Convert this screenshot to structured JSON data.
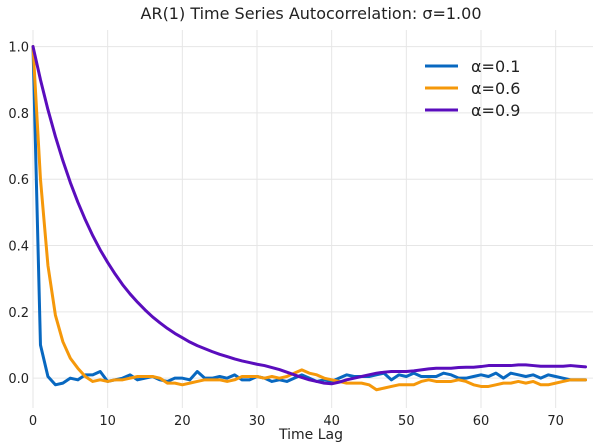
{
  "chart_data": {
    "type": "line",
    "title": "AR(1) Time Series Autocorrelation: σ=1.00",
    "xlabel": "Time Lag",
    "ylabel": "",
    "xlim": [
      0,
      75
    ],
    "ylim": [
      -0.09,
      1.05
    ],
    "xticks": [
      0,
      10,
      20,
      30,
      40,
      50,
      60,
      70
    ],
    "yticks": [
      0.0,
      0.2,
      0.4,
      0.6,
      0.8,
      1.0
    ],
    "xtick_labels": [
      "0",
      "10",
      "20",
      "30",
      "40",
      "50",
      "60",
      "70"
    ],
    "ytick_labels": [
      "0.0",
      "0.2",
      "0.4",
      "0.6",
      "0.8",
      "1.0"
    ],
    "grid": true,
    "legend_position": "top-right",
    "x": [
      0,
      1,
      2,
      3,
      4,
      5,
      6,
      7,
      8,
      9,
      10,
      11,
      12,
      13,
      14,
      15,
      16,
      17,
      18,
      19,
      20,
      21,
      22,
      23,
      24,
      25,
      26,
      27,
      28,
      29,
      30,
      31,
      32,
      33,
      34,
      35,
      36,
      37,
      38,
      39,
      40,
      41,
      42,
      43,
      44,
      45,
      46,
      47,
      48,
      49,
      50,
      51,
      52,
      53,
      54,
      55,
      56,
      57,
      58,
      59,
      60,
      61,
      62,
      63,
      64,
      65,
      66,
      67,
      68,
      69,
      70,
      71,
      72,
      73,
      74
    ],
    "series": [
      {
        "name": "α=0.1",
        "color": "#0868c0",
        "values": [
          1.0,
          0.1,
          0.005,
          -0.02,
          -0.015,
          0.0,
          -0.005,
          0.01,
          0.01,
          0.02,
          -0.01,
          -0.005,
          0.0,
          0.01,
          -0.005,
          0.0,
          0.005,
          -0.005,
          -0.01,
          0.0,
          0.0,
          -0.005,
          0.02,
          0.0,
          0.0,
          0.005,
          0.0,
          0.01,
          -0.005,
          -0.005,
          0.005,
          0.0,
          -0.01,
          -0.005,
          -0.01,
          0.0,
          0.01,
          0.0,
          -0.01,
          -0.005,
          -0.01,
          0.0,
          0.01,
          0.005,
          0.005,
          0.005,
          0.01,
          0.015,
          -0.005,
          0.01,
          0.005,
          0.015,
          0.005,
          0.005,
          0.005,
          0.015,
          0.01,
          0.0,
          0.0,
          0.005,
          0.01,
          0.005,
          0.015,
          0.0,
          0.015,
          0.01,
          0.005,
          0.01,
          0.0,
          0.01,
          0.005,
          0.0,
          -0.005,
          -0.005,
          -0.005
        ]
      },
      {
        "name": "α=0.6",
        "color": "#f5980a",
        "values": [
          1.0,
          0.6,
          0.34,
          0.19,
          0.11,
          0.06,
          0.03,
          0.005,
          -0.01,
          -0.005,
          -0.01,
          -0.005,
          -0.005,
          0.0,
          0.005,
          0.005,
          0.005,
          0.0,
          -0.015,
          -0.015,
          -0.02,
          -0.015,
          -0.01,
          -0.005,
          -0.005,
          -0.005,
          -0.01,
          -0.005,
          0.005,
          0.005,
          0.005,
          0.0,
          0.005,
          0.0,
          0.005,
          0.015,
          0.025,
          0.015,
          0.01,
          0.0,
          -0.005,
          -0.01,
          -0.015,
          -0.015,
          -0.015,
          -0.02,
          -0.035,
          -0.03,
          -0.025,
          -0.02,
          -0.02,
          -0.02,
          -0.01,
          -0.005,
          -0.01,
          -0.01,
          -0.01,
          -0.005,
          -0.01,
          -0.02,
          -0.025,
          -0.025,
          -0.02,
          -0.015,
          -0.015,
          -0.01,
          -0.015,
          -0.01,
          -0.02,
          -0.02,
          -0.015,
          -0.01,
          -0.005,
          -0.005,
          -0.005
        ]
      },
      {
        "name": "α=0.9",
        "color": "#5a0dbd",
        "values": [
          1.0,
          0.9,
          0.81,
          0.729,
          0.656,
          0.59,
          0.531,
          0.478,
          0.43,
          0.387,
          0.349,
          0.314,
          0.282,
          0.254,
          0.229,
          0.206,
          0.185,
          0.167,
          0.15,
          0.135,
          0.122,
          0.109,
          0.098,
          0.089,
          0.08,
          0.072,
          0.065,
          0.058,
          0.052,
          0.047,
          0.042,
          0.038,
          0.032,
          0.026,
          0.018,
          0.01,
          0.002,
          -0.005,
          -0.01,
          -0.015,
          -0.017,
          -0.012,
          -0.005,
          0.0,
          0.005,
          0.01,
          0.015,
          0.018,
          0.02,
          0.02,
          0.02,
          0.022,
          0.025,
          0.028,
          0.03,
          0.03,
          0.03,
          0.032,
          0.033,
          0.033,
          0.035,
          0.038,
          0.038,
          0.038,
          0.038,
          0.04,
          0.04,
          0.038,
          0.036,
          0.036,
          0.036,
          0.036,
          0.038,
          0.036,
          0.034
        ]
      }
    ]
  }
}
